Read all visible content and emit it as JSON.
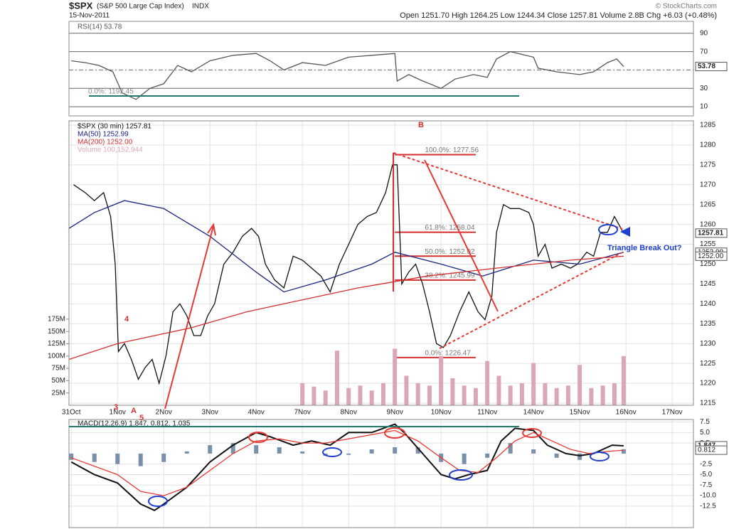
{
  "header": {
    "symbol": "$SPX",
    "name": "(S&P 500 Large Cap Index)",
    "exchange": "INDX",
    "date": "15-Nov-2011",
    "quote": "Open 1251.70  High 1264.25  Low 1244.34  Close 1257.81  Volume 2.8B  Chg +6.03 (+0.48%)",
    "copyright": "© StockCharts.com"
  },
  "chart_data": [
    {
      "type": "line",
      "xlim": [
        -0.05,
        13.46
      ],
      "ylim": [
        0,
        103
      ],
      "yticks": [
        10,
        30,
        70,
        90
      ],
      "midline": 50,
      "annotation": "0.0%: 1192.45",
      "series": [
        {
          "name": "RSI(14) 53.78",
          "color": "#555555",
          "x": [
            0,
            0.3,
            0.6,
            0.9,
            1.1,
            1.4,
            1.7,
            2.0,
            2.3,
            2.6,
            3.0,
            3.5,
            4.0,
            4.3,
            4.6,
            5.0,
            5.5,
            6.0,
            6.5,
            7.0,
            7.05,
            7.3,
            7.6,
            8.0,
            8.3,
            8.7,
            9.0,
            9.2,
            9.5,
            10.0,
            10.1,
            10.5,
            11.0,
            11.3,
            11.6,
            11.8,
            11.95
          ],
          "values": [
            60,
            58,
            55,
            48,
            25,
            18,
            30,
            35,
            55,
            48,
            60,
            66,
            68,
            60,
            50,
            58,
            55,
            64,
            66,
            68,
            38,
            45,
            38,
            30,
            40,
            45,
            42,
            62,
            70,
            64,
            52,
            48,
            45,
            48,
            58,
            62,
            53.78
          ]
        }
      ],
      "last_labels": [
        53.78
      ]
    },
    {
      "type": "line",
      "xlim": [
        -0.05,
        13.46
      ],
      "ylim": [
        1214.46,
        1286.07
      ],
      "yticks": [
        1215,
        1220,
        1225,
        1230,
        1235,
        1240,
        1245,
        1250,
        1255,
        1260,
        1265,
        1270,
        1275,
        1280,
        1285
      ],
      "y2lim": [
        0,
        578000000
      ],
      "y2ticks": [
        {
          "value": 25000000,
          "label": "25M"
        },
        {
          "value": 50000000,
          "label": "50M"
        },
        {
          "value": 75000000,
          "label": "75M"
        },
        {
          "value": 100000000,
          "label": "100M"
        },
        {
          "value": 125000000,
          "label": "125M"
        },
        {
          "value": 150000000,
          "label": "150M"
        },
        {
          "value": 175000000,
          "label": "175M"
        }
      ],
      "xticks": [
        {
          "value": 0,
          "label": "31Oct"
        },
        {
          "value": 1,
          "label": "1Nov"
        },
        {
          "value": 2,
          "label": "2Nov"
        },
        {
          "value": 3,
          "label": "3Nov"
        },
        {
          "value": 4,
          "label": "4Nov"
        },
        {
          "value": 5,
          "label": "7Nov"
        },
        {
          "value": 6,
          "label": "8Nov"
        },
        {
          "value": 7,
          "label": "9Nov"
        },
        {
          "value": 8,
          "label": "10Nov"
        },
        {
          "value": 9,
          "label": "11Nov"
        },
        {
          "value": 10,
          "label": "14Nov"
        },
        {
          "value": 11,
          "label": "15Nov"
        },
        {
          "value": 12,
          "label": "16Nov"
        },
        {
          "value": 13,
          "label": "17Nov"
        }
      ],
      "series": [
        {
          "name": "Volume 100,152,944",
          "type": "bar",
          "axis": "y2",
          "color": "#d9a7b8",
          "x": [
            5.0,
            5.25,
            5.5,
            5.75,
            6.0,
            6.25,
            6.5,
            6.75,
            7.0,
            7.25,
            7.5,
            7.75,
            8.0,
            8.25,
            8.5,
            8.75,
            9.0,
            9.25,
            9.5,
            9.75,
            10.0,
            10.25,
            10.5,
            10.75,
            11.0,
            11.25,
            11.5,
            11.75,
            11.95
          ],
          "values": [
            45000000,
            38000000,
            30000000,
            111000000,
            35000000,
            40000000,
            30000000,
            45000000,
            115000000,
            60000000,
            45000000,
            40000000,
            100000000,
            55000000,
            40000000,
            35000000,
            90000000,
            60000000,
            40000000,
            45000000,
            86000000,
            45000000,
            35000000,
            40000000,
            82000000,
            35000000,
            40000000,
            45000000,
            100000000
          ]
        },
        {
          "name": "$SPX (30 min) 1257.81",
          "color": "#111111",
          "x": [
            0.05,
            0.3,
            0.5,
            0.7,
            0.85,
            0.95,
            1.02,
            1.15,
            1.3,
            1.45,
            1.6,
            1.75,
            1.9,
            2.05,
            2.2,
            2.35,
            2.5,
            2.65,
            2.8,
            2.95,
            3.1,
            3.3,
            3.5,
            3.7,
            3.9,
            4.05,
            4.2,
            4.4,
            4.6,
            4.8,
            5.0,
            5.2,
            5.4,
            5.6,
            5.8,
            6.0,
            6.2,
            6.4,
            6.6,
            6.8,
            6.95,
            7.05,
            7.15,
            7.3,
            7.45,
            7.6,
            7.75,
            7.9,
            8.05,
            8.2,
            8.4,
            8.6,
            8.8,
            8.95,
            9.1,
            9.2,
            9.35,
            9.5,
            9.7,
            9.9,
            10.0,
            10.1,
            10.25,
            10.4,
            10.6,
            10.8,
            10.95,
            11.15,
            11.3,
            11.45,
            11.6,
            11.75,
            11.95
          ],
          "values": [
            1270,
            1268,
            1266,
            1268,
            1262,
            1250,
            1228,
            1230,
            1226,
            1221,
            1224,
            1226,
            1220,
            1227,
            1238,
            1240,
            1237,
            1232,
            1232,
            1237,
            1240,
            1250,
            1253,
            1257,
            1259,
            1257,
            1250,
            1246,
            1244,
            1252,
            1251,
            1249,
            1247,
            1243,
            1250,
            1255,
            1260,
            1262,
            1263,
            1268,
            1275,
            1275,
            1245,
            1248,
            1250,
            1245,
            1238,
            1230,
            1229,
            1232,
            1238,
            1243,
            1238,
            1236,
            1242,
            1258,
            1265,
            1264,
            1264,
            1263,
            1260,
            1252,
            1255,
            1249,
            1250,
            1249,
            1250,
            1253,
            1252,
            1258,
            1258,
            1262,
            1257.81
          ]
        },
        {
          "name": "MA(50) 1252.99",
          "color": "#1a237e",
          "x": [
            -0.05,
            0.5,
            1.15,
            2.0,
            3.0,
            4.0,
            4.6,
            5.5,
            6.5,
            7.0,
            8.0,
            8.9,
            10.0,
            11.0,
            11.95
          ],
          "values": [
            1259,
            1263,
            1266,
            1264,
            1257,
            1248,
            1243,
            1246,
            1250,
            1253,
            1250,
            1247,
            1251,
            1250,
            1252.99
          ]
        },
        {
          "name": "MA(200) 1252.00",
          "color": "#d32f2f",
          "x": [
            -0.05,
            1.0,
            2.6,
            3.8,
            4.6,
            6.2,
            7.7,
            9.2,
            10.8,
            11.95
          ],
          "values": [
            1226,
            1230,
            1234,
            1238,
            1240,
            1244,
            1247,
            1249,
            1251,
            1252.0
          ]
        }
      ],
      "fib": [
        {
          "value": 1277.56,
          "label": "100.0%: 1277.56"
        },
        {
          "value": 1258.04,
          "label": "61.8%: 1258.04"
        },
        {
          "value": 1252.02,
          "label": "50.0%: 1252.02"
        },
        {
          "value": 1245.99,
          "label": "38.2%: 1245.99"
        },
        {
          "value": 1226.47,
          "label": "0.0%: 1226.47"
        }
      ],
      "last_labels": [
        1257.81,
        {
          "value": 1252.99,
          "label": "1252.99"
        },
        {
          "value": 1252.0,
          "label": "1252.00"
        }
      ],
      "notes": [
        "B",
        "A",
        "4",
        "3",
        "5",
        "Triangle Break Out?"
      ]
    },
    {
      "type": "line",
      "title": "MACD(12,26,9) 1.847, 0.812, 1.035",
      "xlim": [
        -0.05,
        13.46
      ],
      "ylim": [
        -17.6,
        8.1
      ],
      "yticks": [
        -12.5,
        {
          "value": -10,
          "label": "-10.0"
        },
        -7.5,
        {
          "value": -5,
          "label": "-5.0"
        },
        -2.5,
        2.5,
        {
          "value": 5,
          "label": "5.0"
        },
        7.5
      ],
      "xticks": [
        {
          "value": 0,
          "label": "31Oct"
        },
        {
          "value": 1,
          "label": "1Nov"
        },
        {
          "value": 2,
          "label": "2Nov"
        },
        {
          "value": 3,
          "label": "3Nov"
        },
        {
          "value": 4,
          "label": "4Nov"
        },
        {
          "value": 5,
          "label": "7Nov"
        },
        {
          "value": 6,
          "label": "8Nov"
        },
        {
          "value": 7,
          "label": "9Nov"
        },
        {
          "value": 8,
          "label": "10Nov"
        },
        {
          "value": 9,
          "label": "11Nov"
        },
        {
          "value": 10,
          "label": "14Nov"
        },
        {
          "value": 11,
          "label": "15Nov"
        },
        {
          "value": 12,
          "label": "16Nov"
        },
        {
          "value": 13,
          "label": "17Nov"
        }
      ],
      "series": [
        {
          "type": "bar",
          "color": "#7a8fa8",
          "x": [
            0,
            0.5,
            1.0,
            1.5,
            2.0,
            2.5,
            3.0,
            3.5,
            4.0,
            4.5,
            5.0,
            5.5,
            6.0,
            6.5,
            7.0,
            7.5,
            8.0,
            8.5,
            9.0,
            9.5,
            10.0,
            10.5,
            11.0,
            11.5,
            11.95
          ],
          "values": [
            -1.5,
            -2,
            -2.5,
            -3,
            -2,
            0.5,
            2,
            2.5,
            2,
            1.5,
            0.5,
            -0.5,
            -0.3,
            1,
            1.5,
            1.5,
            -2,
            -2.5,
            -1,
            2.5,
            1,
            -1,
            -1.5,
            0.5,
            1.035
          ]
        },
        {
          "color": "#111111",
          "x": [
            0,
            0.5,
            1.0,
            1.5,
            1.8,
            2.0,
            2.5,
            3.0,
            3.5,
            4.0,
            4.3,
            4.8,
            5.2,
            5.6,
            6.0,
            6.5,
            7.0,
            7.2,
            7.6,
            8.0,
            8.3,
            8.6,
            9.0,
            9.3,
            9.6,
            10.0,
            10.3,
            10.7,
            11.0,
            11.3,
            11.7,
            11.95
          ],
          "values": [
            -2,
            -5,
            -7,
            -12,
            -13.5,
            -12,
            -8,
            -2,
            2,
            5,
            4,
            2,
            3,
            2,
            5,
            5,
            7,
            5,
            0,
            -5,
            -6,
            -5,
            -4,
            3,
            6,
            5.5,
            2,
            0,
            -0.5,
            0,
            2,
            1.847
          ]
        },
        {
          "color": "#e53935",
          "x": [
            0,
            1.0,
            1.5,
            2.0,
            2.5,
            3.0,
            3.5,
            4.0,
            4.5,
            5.0,
            5.5,
            6.0,
            6.5,
            7.0,
            7.5,
            8.0,
            8.4,
            8.8,
            9.2,
            9.6,
            10.0,
            10.4,
            10.8,
            11.2,
            11.6,
            11.95
          ],
          "values": [
            -1,
            -5,
            -9,
            -10,
            -8,
            -4,
            0,
            3,
            3.5,
            2.5,
            2.5,
            3.5,
            4.5,
            5.5,
            3,
            -1,
            -4,
            -4.5,
            -1,
            3,
            5,
            3,
            1,
            0,
            0.5,
            0.812
          ]
        }
      ],
      "last_labels": [
        1.847,
        0.812
      ]
    }
  ]
}
